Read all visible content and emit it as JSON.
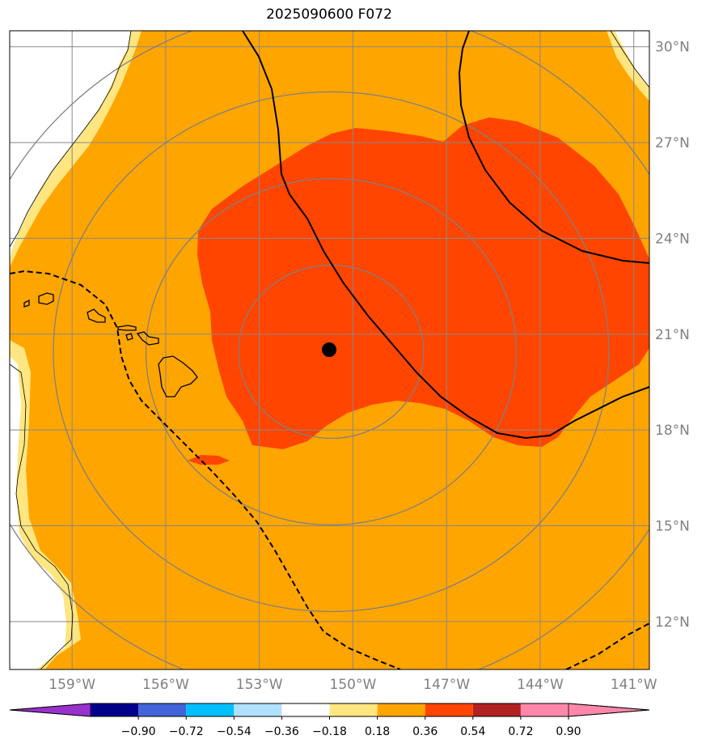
{
  "title": "2025090600 F072",
  "map": {
    "lon_range": [
      -161,
      -140.5
    ],
    "lat_range": [
      10.5,
      30.5
    ],
    "lon_ticks": [
      {
        "value": -159,
        "label": "159°W"
      },
      {
        "value": -156,
        "label": "156°W"
      },
      {
        "value": -153,
        "label": "153°W"
      },
      {
        "value": -150,
        "label": "150°W"
      },
      {
        "value": -147,
        "label": "147°W"
      },
      {
        "value": -144,
        "label": "144°W"
      },
      {
        "value": -141,
        "label": "141°W"
      }
    ],
    "lat_ticks": [
      {
        "value": 30,
        "label": "30°N"
      },
      {
        "value": 27,
        "label": "27°N"
      },
      {
        "value": 24,
        "label": "24°N"
      },
      {
        "value": 21,
        "label": "21°N"
      },
      {
        "value": 18,
        "label": "18°N"
      },
      {
        "value": 15,
        "label": "15°N"
      },
      {
        "value": 12,
        "label": "12°N"
      }
    ],
    "center_marker": {
      "lon": -150.7,
      "lat": 20.45
    },
    "range_rings": 4,
    "fill_colors": {
      "background": "#ffa500",
      "high": "#ff4500",
      "edge": "#ffe680",
      "white": "#ffffff"
    }
  },
  "colorbar": {
    "labels": [
      "−0.90",
      "−0.72",
      "−0.54",
      "−0.36",
      "−0.18",
      "0.18",
      "0.36",
      "0.54",
      "0.72",
      "0.90"
    ],
    "colors": [
      "#9932cc",
      "#00008b",
      "#4363d8",
      "#00bfff",
      "#b0e0ff",
      "#ffffff",
      "#ffe680",
      "#ffa500",
      "#ff4500",
      "#b22222",
      "#ff88aa",
      "#ff88aa"
    ]
  }
}
